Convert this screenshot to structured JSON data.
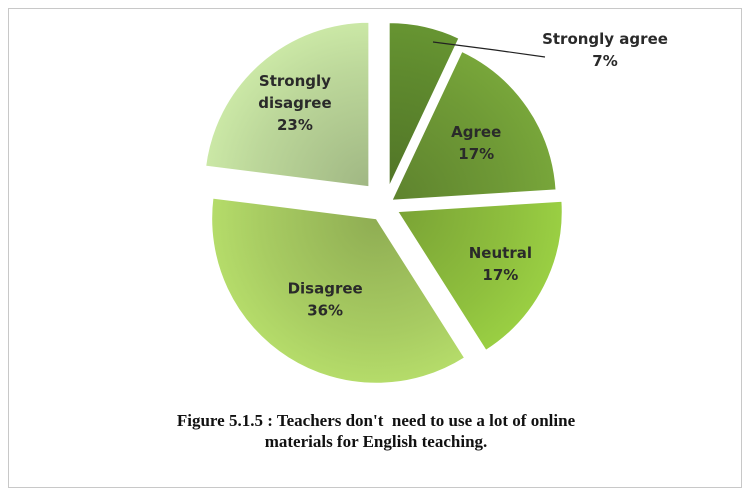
{
  "chart_data": {
    "type": "pie",
    "exploded": true,
    "slices": [
      {
        "label": "Strongly agree",
        "value": 7,
        "display": "7%",
        "color": "#5f8a2e"
      },
      {
        "label": "Agree",
        "value": 17,
        "display": "17%",
        "color": "#6f9a36"
      },
      {
        "label": "Neutral",
        "value": 17,
        "display": "17%",
        "color": "#8fc03e"
      },
      {
        "label": "Disagree",
        "value": 36,
        "display": "36%",
        "color": "#a8cc62"
      },
      {
        "label": "Strongly disagree",
        "value": 23,
        "display": "23%",
        "color": "#bcd79a"
      }
    ],
    "caption_line1": "Figure 5.1.5 : Teachers don't  need to use a lot of online",
    "caption_line2": "materials for English teaching."
  }
}
